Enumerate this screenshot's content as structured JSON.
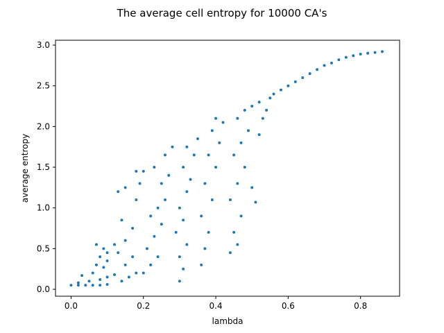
{
  "chart_data": {
    "type": "scatter",
    "title": "The average cell entropy for 10000 CA's",
    "xlabel": "lambda",
    "ylabel": "average entropy",
    "xlim": [
      -0.043,
      0.908
    ],
    "ylim": [
      -0.085,
      3.06
    ],
    "xticks": [
      0.0,
      0.2,
      0.4,
      0.6,
      0.8
    ],
    "xtick_labels": [
      "0.0",
      "0.2",
      "0.4",
      "0.6",
      "0.8"
    ],
    "yticks": [
      0.0,
      0.5,
      1.0,
      1.5,
      2.0,
      2.5,
      3.0
    ],
    "ytick_labels": [
      "0.0",
      "0.5",
      "1.0",
      "1.5",
      "2.0",
      "2.5",
      "3.0"
    ],
    "grid": false,
    "color": "#1f77b4",
    "series": [
      {
        "points": [
          [
            0.0,
            0.05
          ],
          [
            0.02,
            0.05
          ],
          [
            0.04,
            0.05
          ],
          [
            0.06,
            0.05
          ],
          [
            0.08,
            0.05
          ],
          [
            0.1,
            0.06
          ],
          [
            0.02,
            0.08
          ],
          [
            0.05,
            0.1
          ],
          [
            0.08,
            0.12
          ],
          [
            0.1,
            0.15
          ],
          [
            0.12,
            0.18
          ],
          [
            0.03,
            0.17
          ],
          [
            0.06,
            0.2
          ],
          [
            0.09,
            0.27
          ],
          [
            0.07,
            0.3
          ],
          [
            0.1,
            0.35
          ],
          [
            0.08,
            0.4
          ],
          [
            0.1,
            0.45
          ],
          [
            0.09,
            0.5
          ],
          [
            0.12,
            0.55
          ],
          [
            0.07,
            0.55
          ],
          [
            0.14,
            0.1
          ],
          [
            0.16,
            0.15
          ],
          [
            0.18,
            0.2
          ],
          [
            0.15,
            0.3
          ],
          [
            0.17,
            0.4
          ],
          [
            0.13,
            0.45
          ],
          [
            0.15,
            0.6
          ],
          [
            0.17,
            0.75
          ],
          [
            0.14,
            0.85
          ],
          [
            0.13,
            1.2
          ],
          [
            0.15,
            1.25
          ],
          [
            0.18,
            1.1
          ],
          [
            0.19,
            1.3
          ],
          [
            0.18,
            1.45
          ],
          [
            0.2,
            1.45
          ],
          [
            0.2,
            0.2
          ],
          [
            0.22,
            0.3
          ],
          [
            0.24,
            0.4
          ],
          [
            0.21,
            0.5
          ],
          [
            0.23,
            0.65
          ],
          [
            0.25,
            0.8
          ],
          [
            0.22,
            0.9
          ],
          [
            0.24,
            1.0
          ],
          [
            0.26,
            1.1
          ],
          [
            0.25,
            1.3
          ],
          [
            0.27,
            1.4
          ],
          [
            0.23,
            1.5
          ],
          [
            0.26,
            1.65
          ],
          [
            0.28,
            1.75
          ],
          [
            0.3,
            0.1
          ],
          [
            0.31,
            0.25
          ],
          [
            0.3,
            0.4
          ],
          [
            0.32,
            0.55
          ],
          [
            0.29,
            0.7
          ],
          [
            0.31,
            0.85
          ],
          [
            0.3,
            1.0
          ],
          [
            0.32,
            1.2
          ],
          [
            0.33,
            1.35
          ],
          [
            0.31,
            1.5
          ],
          [
            0.34,
            1.65
          ],
          [
            0.32,
            1.75
          ],
          [
            0.35,
            1.85
          ],
          [
            0.36,
            0.3
          ],
          [
            0.37,
            0.5
          ],
          [
            0.38,
            0.7
          ],
          [
            0.36,
            0.9
          ],
          [
            0.39,
            1.1
          ],
          [
            0.37,
            1.3
          ],
          [
            0.4,
            1.5
          ],
          [
            0.38,
            1.65
          ],
          [
            0.41,
            1.8
          ],
          [
            0.39,
            1.95
          ],
          [
            0.42,
            2.05
          ],
          [
            0.4,
            2.1
          ],
          [
            0.44,
            0.45
          ],
          [
            0.46,
            0.55
          ],
          [
            0.45,
            0.7
          ],
          [
            0.47,
            0.9
          ],
          [
            0.44,
            1.1
          ],
          [
            0.46,
            1.3
          ],
          [
            0.48,
            1.5
          ],
          [
            0.45,
            1.65
          ],
          [
            0.47,
            1.8
          ],
          [
            0.49,
            1.95
          ],
          [
            0.46,
            2.1
          ],
          [
            0.48,
            2.2
          ],
          [
            0.5,
            2.25
          ],
          [
            0.5,
            1.25
          ],
          [
            0.51,
            1.07
          ],
          [
            0.52,
            1.9
          ],
          [
            0.53,
            2.1
          ],
          [
            0.54,
            2.2
          ],
          [
            0.52,
            2.3
          ],
          [
            0.55,
            2.35
          ],
          [
            0.56,
            2.4
          ],
          [
            0.58,
            2.45
          ],
          [
            0.6,
            2.5
          ],
          [
            0.62,
            2.55
          ],
          [
            0.64,
            2.6
          ],
          [
            0.66,
            2.65
          ],
          [
            0.68,
            2.7
          ],
          [
            0.7,
            2.75
          ],
          [
            0.72,
            2.78
          ],
          [
            0.74,
            2.82
          ],
          [
            0.76,
            2.85
          ],
          [
            0.78,
            2.87
          ],
          [
            0.8,
            2.89
          ],
          [
            0.82,
            2.9
          ],
          [
            0.84,
            2.91
          ],
          [
            0.86,
            2.92
          ]
        ]
      }
    ]
  }
}
